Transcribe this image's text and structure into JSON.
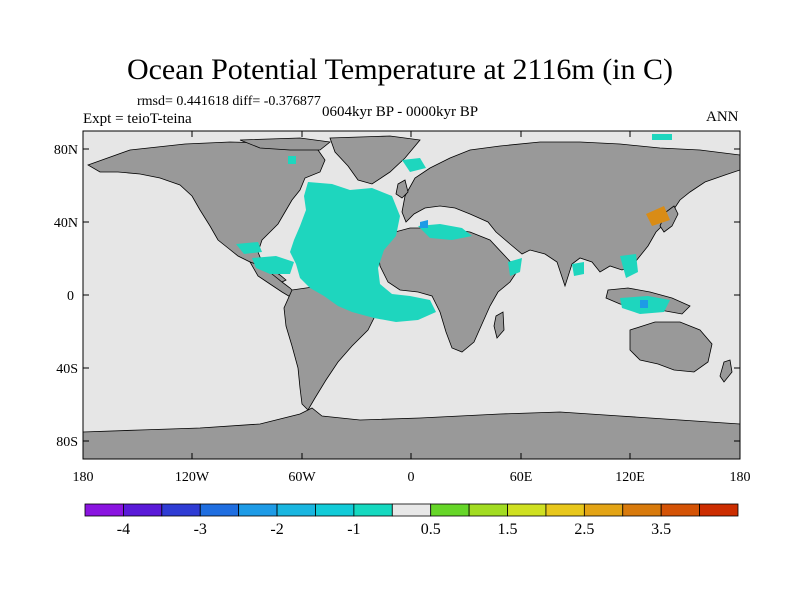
{
  "title": "Ocean Potential Temperature at 2116m (in C)",
  "stats": "rmsd= 0.441618 diff= -0.376877",
  "experiment": "Expt = teioT-teina",
  "period": "0604kyr BP - 0000kyr BP",
  "season": "ANN",
  "lat_labels": [
    "80N",
    "40N",
    "0",
    "40S",
    "80S"
  ],
  "lon_labels": [
    "180",
    "120W",
    "60W",
    "0",
    "60E",
    "120E",
    "180"
  ],
  "colorbar": {
    "colors": [
      "#8a14e0",
      "#5a1ad8",
      "#2f3cd4",
      "#1f6ee0",
      "#1e9be6",
      "#19b6e0",
      "#12cbd8",
      "#15d9c0",
      "#e8e8e8",
      "#66d628",
      "#a2dc22",
      "#cfe021",
      "#e8c71c",
      "#e3a415",
      "#d87a0c",
      "#d45306",
      "#cc2d00"
    ],
    "labels": [
      "-4",
      "-3",
      "-2",
      "-1",
      "0.5",
      "1.5",
      "2.5",
      "3.5"
    ]
  },
  "colors": {
    "ocean_bg": "#e6e6e6",
    "land": "#999999",
    "anomaly_cool": "#1ed6be",
    "anomaly_warm": "#d98c16",
    "anomaly_blue": "#1e9be6"
  }
}
